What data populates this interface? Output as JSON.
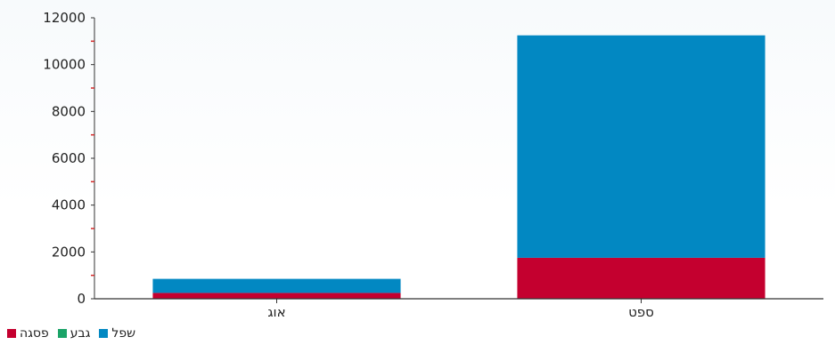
{
  "chart_data": {
    "type": "bar",
    "stacked": true,
    "categories": [
      "אוג",
      "ספט"
    ],
    "series": [
      {
        "name": "פסגה",
        "color": "#c4002f",
        "values": [
          250,
          1750
        ]
      },
      {
        "name": "גבע",
        "color": "#1aa367",
        "values": [
          0,
          0
        ]
      },
      {
        "name": "שפל",
        "color": "#0288c2",
        "values": [
          600,
          9500
        ]
      }
    ],
    "title": "",
    "xlabel": "",
    "ylabel": "",
    "ylim": [
      0,
      12000
    ],
    "yticks": [
      "0",
      "2000",
      "4000",
      "6000",
      "8000",
      "10000",
      "12000"
    ],
    "grid": false,
    "legend_position": "bottom-left"
  }
}
